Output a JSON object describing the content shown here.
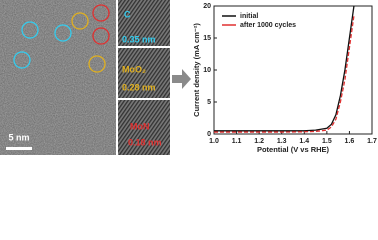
{
  "micrograph": {
    "scale_bar": "5 nm",
    "insets": [
      {
        "phase": "C",
        "spacing": "0.35 nm"
      },
      {
        "phase": "MoO₂",
        "spacing": "0.28 nm"
      },
      {
        "phase": "MoN",
        "spacing": "0.18 nm"
      }
    ]
  },
  "chart_data": {
    "type": "line",
    "xlabel": "Potential (V vs RHE)",
    "ylabel": "Current density (mA cm⁻²)",
    "x": [
      1.0,
      1.1,
      1.2,
      1.3,
      1.4,
      1.45,
      1.5,
      1.52,
      1.54,
      1.56,
      1.58,
      1.6,
      1.62
    ],
    "series": [
      {
        "name": "initial",
        "color": "#111111",
        "values": [
          0.5,
          0.5,
          0.5,
          0.5,
          0.5,
          0.6,
          0.9,
          1.5,
          3,
          6,
          10,
          15,
          20
        ]
      },
      {
        "name": "after 1000 cycles",
        "color": "#e03030",
        "values": [
          0.3,
          0.3,
          0.3,
          0.3,
          0.35,
          0.4,
          0.6,
          1.1,
          2.3,
          5,
          8.5,
          13.5,
          18.5
        ]
      }
    ],
    "xlim": [
      1.0,
      1.7
    ],
    "xticks": [
      {
        "value": 1.0,
        "label": "1.0"
      },
      1.1,
      1.2,
      1.3,
      1.4,
      1.5,
      1.6,
      1.7
    ],
    "ylim": [
      0,
      20
    ],
    "yticks": [
      0,
      5,
      10,
      15,
      20
    ],
    "legend": "upper-left"
  }
}
